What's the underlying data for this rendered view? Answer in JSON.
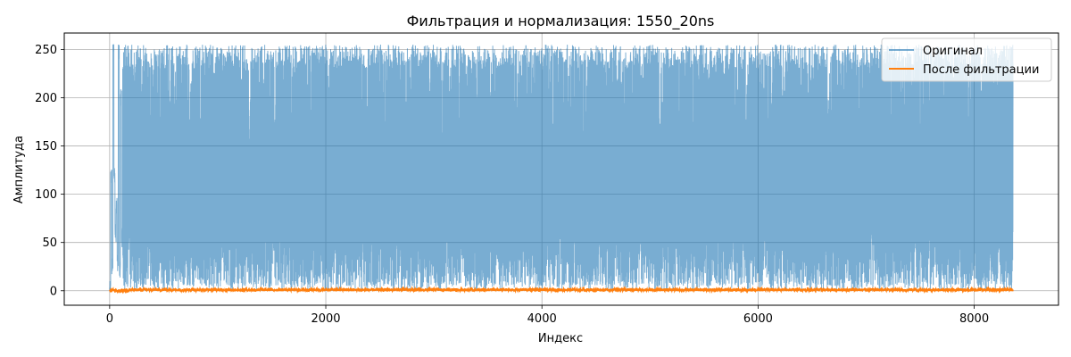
{
  "chart_data": {
    "type": "line",
    "title": "Фильтрация и нормализация: 1550_20ns",
    "xlabel": "Индекс",
    "ylabel": "Амплитуда",
    "xlim": [
      -420,
      8780
    ],
    "ylim": [
      -15,
      267
    ],
    "xticks": [
      0,
      2000,
      4000,
      6000,
      8000
    ],
    "yticks": [
      0,
      50,
      100,
      150,
      200,
      250
    ],
    "grid": true,
    "legend_position": "top-right",
    "n_points": 8360,
    "series": [
      {
        "name": "Оригинал",
        "color": "#1f77b4",
        "alpha": 0.6,
        "description_values": {
          "range": [
            0,
            255
          ],
          "start_values_approx": [
            0,
            118,
            25,
            255,
            120,
            60,
            90,
            30,
            250,
            20,
            200,
            55
          ],
          "typical_lower_envelope": [
            0,
            60
          ],
          "typical_upper_envelope": [
            200,
            255
          ]
        }
      },
      {
        "name": "После фильтрации",
        "color": "#ff7f0e",
        "alpha": 1.0,
        "description_values": {
          "range": [
            -2,
            3
          ],
          "typical": 1
        }
      }
    ]
  }
}
